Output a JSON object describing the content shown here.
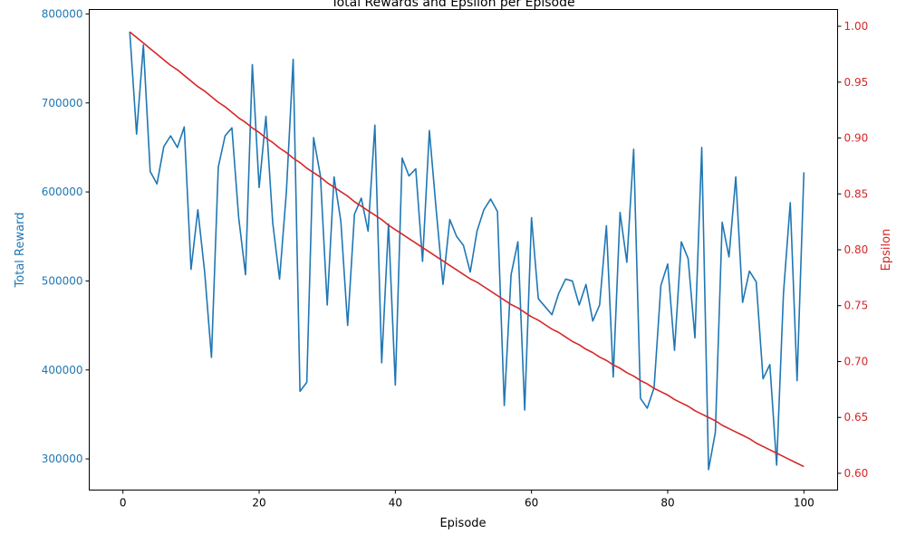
{
  "chart_data": {
    "type": "line",
    "title": "Total Rewards and Epsilon per Episode",
    "xlabel": "Episode",
    "ylabel_left": "Total Reward",
    "ylabel_right": "Epsilon",
    "x_ticks": [
      "0",
      "20",
      "40",
      "60",
      "80",
      "100"
    ],
    "y_left_ticks": [
      "300000",
      "400000",
      "500000",
      "600000",
      "700000",
      "800000"
    ],
    "y_right_ticks": [
      "0.60",
      "0.65",
      "0.70",
      "0.75",
      "0.80",
      "0.85",
      "0.90",
      "0.95",
      "1.00"
    ],
    "xlim": [
      -4.95,
      104.95
    ],
    "ylim_left": [
      265000,
      805000
    ],
    "ylim_right": [
      0.585,
      1.015
    ],
    "grid": false,
    "colors": {
      "left": "#1f77b4",
      "right": "#d62728"
    },
    "x": [
      1,
      2,
      3,
      4,
      5,
      6,
      7,
      8,
      9,
      10,
      11,
      12,
      13,
      14,
      15,
      16,
      17,
      18,
      19,
      20,
      21,
      22,
      23,
      24,
      25,
      26,
      27,
      28,
      29,
      30,
      31,
      32,
      33,
      34,
      35,
      36,
      37,
      38,
      39,
      40,
      41,
      42,
      43,
      44,
      45,
      46,
      47,
      48,
      49,
      50,
      51,
      52,
      53,
      54,
      55,
      56,
      57,
      58,
      59,
      60,
      61,
      62,
      63,
      64,
      65,
      66,
      67,
      68,
      69,
      70,
      71,
      72,
      73,
      74,
      75,
      76,
      77,
      78,
      79,
      80,
      81,
      82,
      83,
      84,
      85,
      86,
      87,
      88,
      89,
      90,
      91,
      92,
      93,
      94,
      95,
      96,
      97,
      98,
      99,
      100
    ],
    "series": [
      {
        "name": "Total Reward",
        "axis": "left",
        "values": [
          780000,
          665000,
          765000,
          623000,
          609000,
          651000,
          663000,
          650000,
          673000,
          513000,
          580000,
          510000,
          414000,
          628000,
          663000,
          672000,
          571000,
          507000,
          743000,
          605000,
          685000,
          565000,
          502000,
          600000,
          749000,
          376000,
          386000,
          661000,
          618000,
          473000,
          617000,
          567000,
          450000,
          575000,
          593000,
          556000,
          675000,
          408000,
          564000,
          383000,
          638000,
          618000,
          626000,
          522000,
          669000,
          580000,
          496000,
          569000,
          550000,
          540000,
          510000,
          556000,
          580000,
          592000,
          578000,
          360000,
          507000,
          544000,
          355000,
          571000,
          480000,
          471000,
          462000,
          486000,
          502000,
          500000,
          473000,
          496000,
          455000,
          473000,
          562000,
          392000,
          577000,
          521000,
          648000,
          368000,
          357000,
          380000,
          495000,
          519000,
          422000,
          544000,
          525000,
          436000,
          650000,
          288000,
          330000,
          566000,
          527000,
          617000,
          476000,
          511000,
          499000,
          390000,
          406000,
          293000,
          486000,
          588000,
          388000,
          622000
        ]
      },
      {
        "name": "Epsilon",
        "axis": "right",
        "values": [
          0.995,
          0.99,
          0.985,
          0.98,
          0.975,
          0.97,
          0.965,
          0.961,
          0.956,
          0.951,
          0.946,
          0.942,
          0.937,
          0.932,
          0.928,
          0.923,
          0.918,
          0.914,
          0.909,
          0.905,
          0.9,
          0.896,
          0.891,
          0.887,
          0.882,
          0.878,
          0.873,
          0.869,
          0.865,
          0.86,
          0.856,
          0.852,
          0.848,
          0.843,
          0.839,
          0.835,
          0.831,
          0.827,
          0.822,
          0.818,
          0.814,
          0.81,
          0.806,
          0.802,
          0.798,
          0.794,
          0.79,
          0.786,
          0.782,
          0.778,
          0.774,
          0.771,
          0.767,
          0.763,
          0.759,
          0.755,
          0.751,
          0.748,
          0.744,
          0.74,
          0.737,
          0.733,
          0.729,
          0.726,
          0.722,
          0.718,
          0.715,
          0.711,
          0.708,
          0.704,
          0.701,
          0.697,
          0.694,
          0.69,
          0.687,
          0.683,
          0.68,
          0.676,
          0.673,
          0.67,
          0.666,
          0.663,
          0.66,
          0.656,
          0.653,
          0.65,
          0.647,
          0.643,
          0.64,
          0.637,
          0.634,
          0.631,
          0.627,
          0.624,
          0.621,
          0.618,
          0.615,
          0.612,
          0.609,
          0.606
        ]
      }
    ]
  }
}
